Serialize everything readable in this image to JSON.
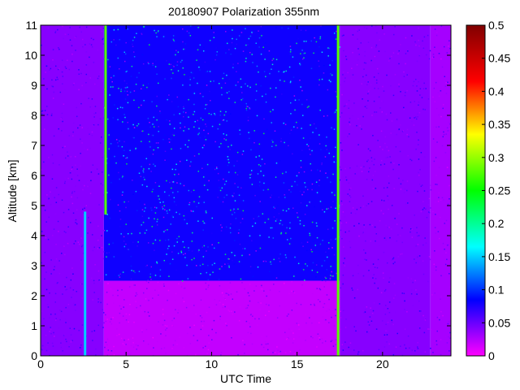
{
  "chart_data": {
    "type": "heatmap",
    "title": "20180907 Polarization 355nm",
    "xlabel": "UTC Time",
    "ylabel": "Altitude [km]",
    "xlim": [
      0,
      24
    ],
    "ylim": [
      0,
      11
    ],
    "xticks": [
      0,
      5,
      10,
      15,
      20
    ],
    "yticks": [
      0,
      1,
      2,
      3,
      4,
      5,
      6,
      7,
      8,
      9,
      10,
      11
    ],
    "colorbar": {
      "min": 0,
      "max": 0.5,
      "ticks": [
        0,
        0.05,
        0.1,
        0.15,
        0.2,
        0.25,
        0.3,
        0.35,
        0.4,
        0.45,
        0.5
      ],
      "tick_labels": [
        "0",
        "0.05",
        "0.1",
        "0.15",
        "0.2",
        "0.25",
        "0.3",
        "0.35",
        "0.4",
        "0.45",
        "0.5"
      ],
      "colormap": "hsv-reversed (magenta low → red high)"
    },
    "data_extent_hours": [
      0,
      24
    ],
    "regions": [
      {
        "t_start": 0.0,
        "t_end": 3.7,
        "alt_low": 0,
        "alt_high": 11,
        "polarization": 0.04
      },
      {
        "t_start": 3.7,
        "t_end": 17.5,
        "alt_low": 0,
        "alt_high": 2.5,
        "polarization": 0.02
      },
      {
        "t_start": 3.7,
        "t_end": 17.5,
        "alt_low": 2.5,
        "alt_high": 11,
        "polarization": 0.08
      },
      {
        "t_start": 17.5,
        "t_end": 22.8,
        "alt_low": 0,
        "alt_high": 11,
        "polarization": 0.04
      },
      {
        "t_start": 22.8,
        "t_end": 24.0,
        "alt_low": 0,
        "alt_high": 11,
        "polarization": 0.03
      }
    ],
    "vertical_features": [
      {
        "t": 2.6,
        "alt_low": 0,
        "alt_high": 4.8,
        "polarization": 0.15
      },
      {
        "t": 3.8,
        "alt_low": 4.7,
        "alt_high": 11,
        "polarization": 0.28
      },
      {
        "t": 17.4,
        "alt_low": 0,
        "alt_high": 11,
        "polarization": 0.28
      }
    ],
    "grid": false
  }
}
